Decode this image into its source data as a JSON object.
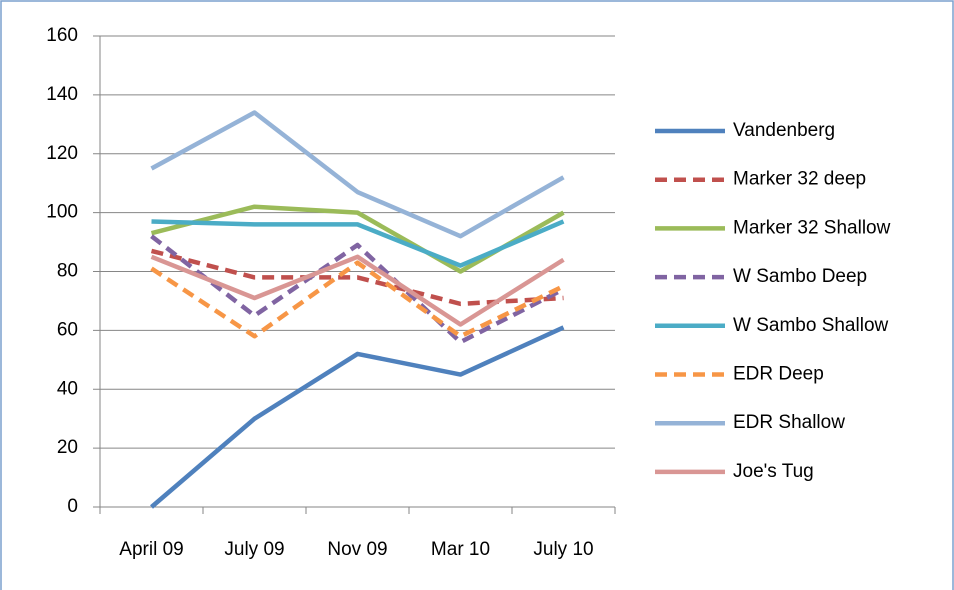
{
  "chart_data": {
    "type": "line",
    "categories": [
      "April 09",
      "July 09",
      "Nov 09",
      "Mar 10",
      "July 10"
    ],
    "series": [
      {
        "name": "Vandenberg",
        "color": "#4f81bd",
        "dashed": false,
        "values": [
          0,
          30,
          52,
          45,
          61
        ]
      },
      {
        "name": "Marker 32 deep",
        "color": "#c0504d",
        "dashed": true,
        "values": [
          87,
          78,
          78,
          69,
          71
        ]
      },
      {
        "name": "Marker 32 Shallow",
        "color": "#9bbb59",
        "dashed": false,
        "values": [
          93,
          102,
          100,
          80,
          100
        ]
      },
      {
        "name": "W Sambo Deep",
        "color": "#8064a2",
        "dashed": true,
        "values": [
          92,
          65,
          89,
          56,
          74
        ]
      },
      {
        "name": "W Sambo Shallow",
        "color": "#4bacc6",
        "dashed": false,
        "values": [
          97,
          96,
          96,
          82,
          97
        ]
      },
      {
        "name": "EDR Deep",
        "color": "#f79646",
        "dashed": true,
        "values": [
          81,
          58,
          83,
          58,
          75
        ]
      },
      {
        "name": "EDR Shallow",
        "color": "#95b3d7",
        "dashed": false,
        "values": [
          115,
          134,
          107,
          92,
          112
        ]
      },
      {
        "name": "Joe's Tug",
        "color": "#d99694",
        "dashed": false,
        "values": [
          85,
          71,
          85,
          62,
          84
        ]
      }
    ],
    "ylim": [
      0,
      160
    ],
    "yticks": [
      0,
      20,
      40,
      60,
      80,
      100,
      120,
      140,
      160
    ],
    "grid": true,
    "legend": "right"
  }
}
